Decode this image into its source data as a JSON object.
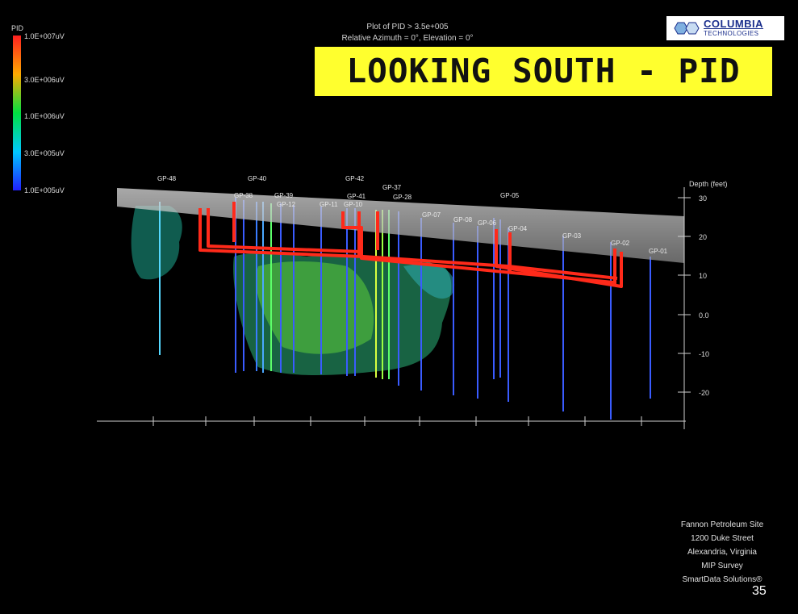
{
  "legend": {
    "title": "PID",
    "labels": [
      "1.0E+007uV",
      "3.0E+006uV",
      "1.0E+006uV",
      "3.0E+005uV",
      "1.0E+005uV"
    ]
  },
  "plot": {
    "title_line1": "Plot of PID > 3.5e+005",
    "title_line2": "Relative Azimuth = 0°, Elevation = 0°"
  },
  "banner": "LOOKING SOUTH - PID",
  "logo": {
    "name": "COLUMBIA",
    "sub": "TECHNOLOGIES"
  },
  "depth_axis": {
    "title": "Depth (feet)",
    "ticks": [
      "30",
      "20",
      "10",
      "0.0",
      "-10",
      "-20"
    ]
  },
  "wells": [
    "GP-48",
    "GP-40",
    "GP-42",
    "GP-41",
    "GP-39",
    "GP-37",
    "GP-38",
    "GP-12",
    "GP-11",
    "GP-10",
    "GP-28",
    "GP-07",
    "GP-08",
    "GP-06",
    "GP-05",
    "GP-04",
    "GP-03",
    "GP-02",
    "GP-01"
  ],
  "info": {
    "line1": "Fannon Petroleum Site",
    "line2": "1200 Duke Street",
    "line3": "Alexandria, Virginia",
    "line4": "MIP Survey",
    "line5": "SmartData Solutions®"
  },
  "page_number": "35"
}
